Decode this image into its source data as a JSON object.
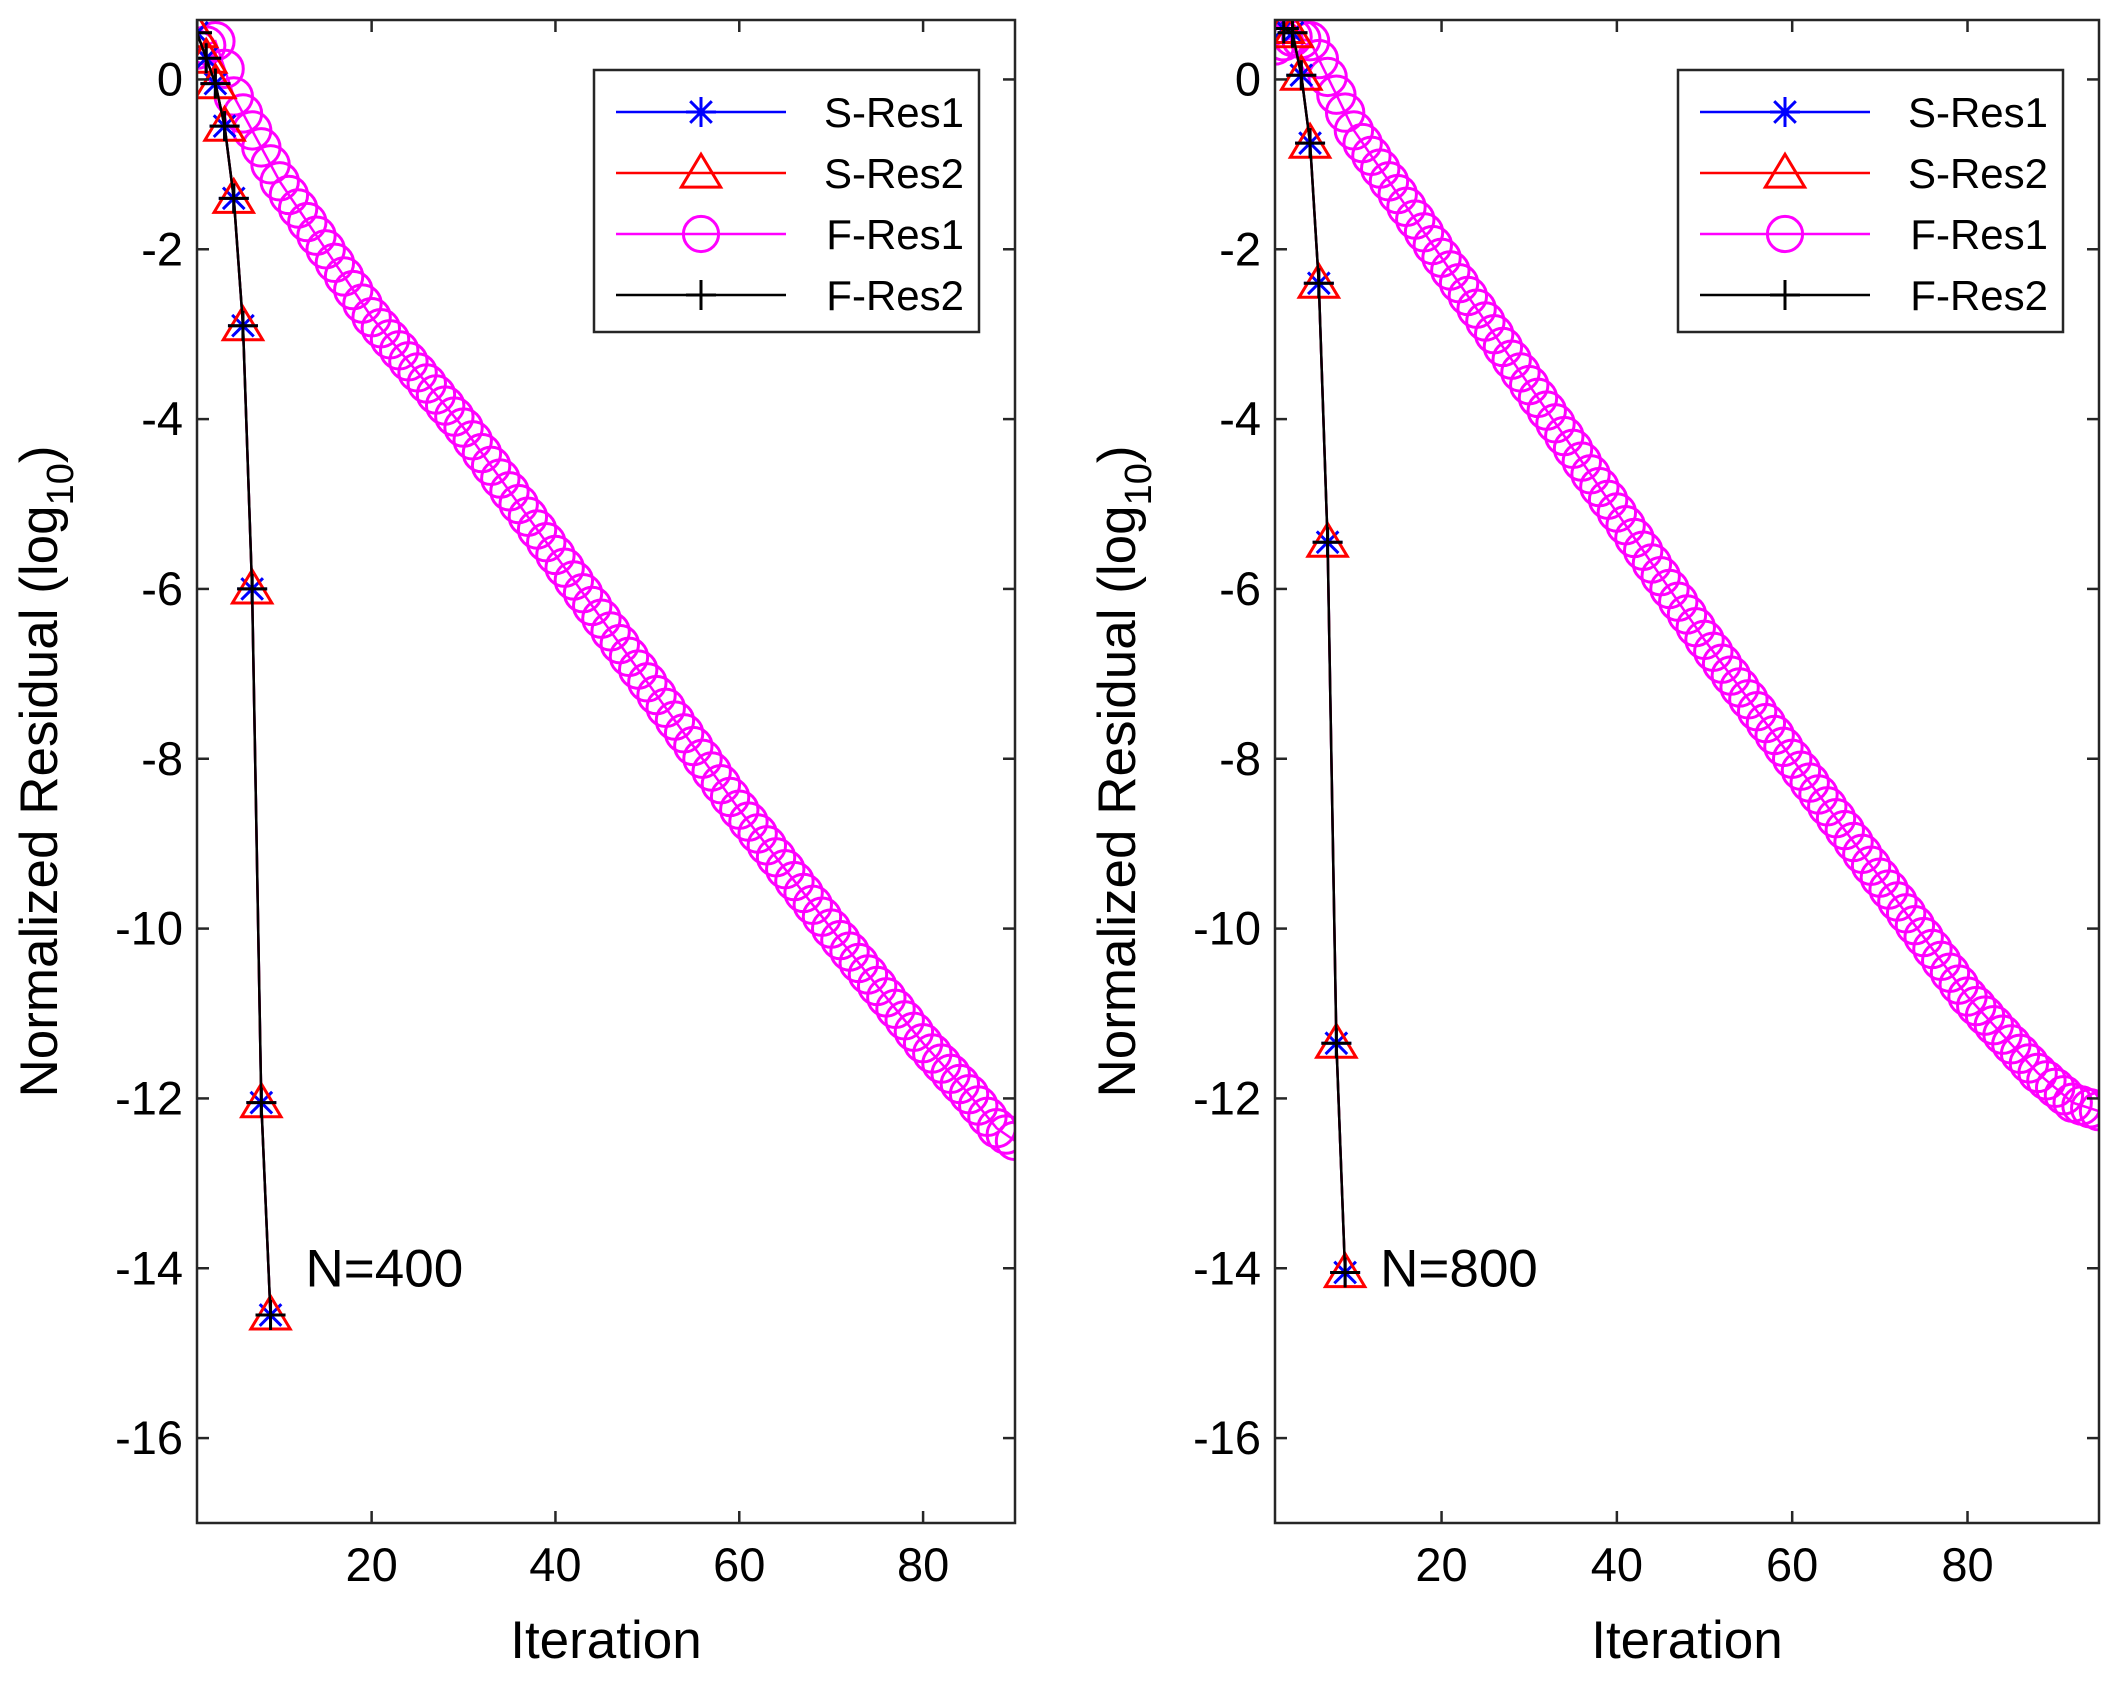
{
  "chart_data": [
    {
      "type": "line",
      "annotation": "N=400",
      "xlabel": "Iteration",
      "ylabel": "Normalized Residual (log",
      "ylabel_sub": "10",
      "ylabel_close": ")",
      "xlim": [
        1,
        90
      ],
      "ylim": [
        -17,
        0.7
      ],
      "xticks": [
        20,
        40,
        60,
        80
      ],
      "xtick_labels": [
        "20",
        "40",
        "60",
        "80"
      ],
      "yticks": [
        0,
        -2,
        -4,
        -6,
        -8,
        -10,
        -12,
        -14,
        -16
      ],
      "ytick_labels": [
        "0",
        "-2",
        "-4",
        "-6",
        "-8",
        "-10",
        "-12",
        "-14",
        "-16"
      ],
      "legend_position": "top-right",
      "series": [
        {
          "name": "S-Res1",
          "color": "#0000ff",
          "marker": "asterisk",
          "x": [
            1,
            2,
            3,
            4,
            5,
            6,
            7,
            8,
            9
          ],
          "y": [
            0.55,
            0.25,
            -0.05,
            -0.55,
            -1.4,
            -2.9,
            -6.0,
            -12.05,
            -14.55
          ]
        },
        {
          "name": "S-Res2",
          "color": "#ff0000",
          "marker": "triangle",
          "x": [
            1,
            2,
            3,
            4,
            5,
            6,
            7,
            8,
            9
          ],
          "y": [
            0.55,
            0.25,
            -0.05,
            -0.55,
            -1.4,
            -2.9,
            -6.0,
            -12.05,
            -14.55
          ]
        },
        {
          "name": "F-Res1",
          "color": "#ff00ff",
          "marker": "circle",
          "x_start": 1,
          "x_end": 90,
          "y_points": [
            [
              1,
              0.35
            ],
            [
              3,
              0.45
            ],
            [
              5,
              -0.2
            ],
            [
              10,
              -1.2
            ],
            [
              20,
              -2.8
            ],
            [
              30,
              -4.1
            ],
            [
              40,
              -5.6
            ],
            [
              50,
              -7.1
            ],
            [
              60,
              -8.6
            ],
            [
              70,
              -10.0
            ],
            [
              80,
              -11.35
            ],
            [
              85,
              -11.95
            ],
            [
              88,
              -12.35
            ],
            [
              90,
              -12.5
            ]
          ]
        },
        {
          "name": "F-Res2",
          "color": "#000000",
          "marker": "plus",
          "x": [
            1,
            2,
            3,
            4,
            5,
            6,
            7,
            8,
            9
          ],
          "y": [
            0.55,
            0.25,
            -0.05,
            -0.55,
            -1.4,
            -2.9,
            -6.0,
            -12.05,
            -14.55
          ]
        }
      ]
    },
    {
      "type": "line",
      "annotation": "N=800",
      "xlabel": "Iteration",
      "ylabel": "Normalized Residual (log",
      "ylabel_sub": "10",
      "ylabel_close": ")",
      "xlim": [
        1,
        95
      ],
      "ylim": [
        -17,
        0.7
      ],
      "xticks": [
        20,
        40,
        60,
        80
      ],
      "xtick_labels": [
        "20",
        "40",
        "60",
        "80"
      ],
      "yticks": [
        0,
        -2,
        -4,
        -6,
        -8,
        -10,
        -12,
        -14,
        -16
      ],
      "ytick_labels": [
        "0",
        "-2",
        "-4",
        "-6",
        "-8",
        "-10",
        "-12",
        "-14",
        "-16"
      ],
      "legend_position": "top-right",
      "series": [
        {
          "name": "S-Res1",
          "color": "#0000ff",
          "marker": "asterisk",
          "x": [
            2,
            3,
            4,
            5,
            6,
            7,
            8,
            9
          ],
          "y": [
            0.6,
            0.55,
            0.05,
            -0.75,
            -2.4,
            -5.45,
            -11.35,
            -14.05
          ]
        },
        {
          "name": "S-Res2",
          "color": "#ff0000",
          "marker": "triangle",
          "x": [
            2,
            3,
            4,
            5,
            6,
            7,
            8,
            9
          ],
          "y": [
            0.6,
            0.55,
            0.05,
            -0.75,
            -2.4,
            -5.45,
            -11.35,
            -14.05
          ]
        },
        {
          "name": "F-Res1",
          "color": "#ff00ff",
          "marker": "circle",
          "x_start": 1,
          "x_end": 95,
          "y_points": [
            [
              1,
              0.4
            ],
            [
              3,
              0.5
            ],
            [
              5,
              0.45
            ],
            [
              10,
              -0.6
            ],
            [
              20,
              -2.1
            ],
            [
              30,
              -3.6
            ],
            [
              40,
              -5.1
            ],
            [
              50,
              -6.6
            ],
            [
              60,
              -8.0
            ],
            [
              70,
              -9.4
            ],
            [
              80,
              -10.8
            ],
            [
              88,
              -11.7
            ],
            [
              92,
              -12.05
            ],
            [
              95,
              -12.15
            ]
          ]
        },
        {
          "name": "F-Res2",
          "color": "#000000",
          "marker": "plus",
          "x": [
            2,
            3,
            4,
            5,
            6,
            7,
            8,
            9
          ],
          "y": [
            0.6,
            0.55,
            0.05,
            -0.75,
            -2.4,
            -5.45,
            -11.35,
            -14.05
          ]
        }
      ]
    }
  ]
}
